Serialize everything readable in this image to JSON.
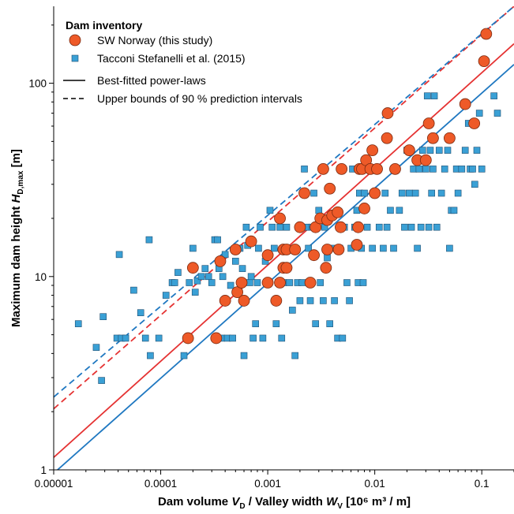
{
  "chart_data": {
    "type": "scatter",
    "xscale": "log",
    "yscale": "log",
    "xlim": [
      1e-05,
      0.2
    ],
    "ylim": [
      1,
      250
    ],
    "xticks": [
      1e-05,
      0.0001,
      0.001,
      0.01,
      0.1
    ],
    "xtick_labels": [
      "0.00001",
      "0.0001",
      "0.001",
      "0.01",
      "0.1"
    ],
    "yticks": [
      1,
      10,
      100
    ],
    "ytick_labels": [
      "1",
      "10",
      "100"
    ],
    "xlabel": {
      "main": "Dam volume",
      "v1": "V",
      "v1_sub": "D",
      "sep": " / Valley width ",
      "v2": "W",
      "v2_sub": "V",
      "units": " [10⁶ m³ / m]"
    },
    "ylabel": {
      "main": "Maximum dam height ",
      "var": "H",
      "sub": "D,max",
      "units": " [m]"
    },
    "grid": false,
    "legend": {
      "placement": "top-left",
      "title": "Dam inventory",
      "items": [
        "SW Norway (this study)",
        "Tacconi Stefanelli et al. (2015)",
        "Best-fitted power-laws",
        "Upper bounds of 90 % prediction intervals"
      ]
    },
    "colors": {
      "norway_fill": "#ee5a28",
      "norway_edge": "#7a2a10",
      "tacconi_fill": "#3aa0d5",
      "tacconi_edge": "#1f4f72",
      "red_line": "#e53232",
      "blue_line": "#1f78c1"
    },
    "series": [
      {
        "name": "SW Norway (this study)",
        "marker": "circle",
        "points": [
          [
            0.00018,
            4.8
          ],
          [
            0.00033,
            4.8
          ],
          [
            0.0002,
            11.1
          ],
          [
            0.00036,
            12
          ],
          [
            0.0004,
            7.5
          ],
          [
            0.00052,
            8.3
          ],
          [
            0.0005,
            13.8
          ],
          [
            0.00057,
            9.3
          ],
          [
            0.0006,
            7.5
          ],
          [
            0.0007,
            15.2
          ],
          [
            0.001,
            9.3
          ],
          [
            0.001,
            12.9
          ],
          [
            0.0012,
            7.5
          ],
          [
            0.0013,
            9.3
          ],
          [
            0.0014,
            11.1
          ],
          [
            0.0014,
            13.8
          ],
          [
            0.0013,
            20
          ],
          [
            0.0015,
            11.1
          ],
          [
            0.0015,
            13.8
          ],
          [
            0.0018,
            13.8
          ],
          [
            0.002,
            18
          ],
          [
            0.0022,
            27
          ],
          [
            0.0025,
            9.3
          ],
          [
            0.0027,
            12.9
          ],
          [
            0.0028,
            18
          ],
          [
            0.0031,
            20
          ],
          [
            0.0033,
            36
          ],
          [
            0.0035,
            11.1
          ],
          [
            0.0036,
            13.8
          ],
          [
            0.0036,
            19.6
          ],
          [
            0.0038,
            28.5
          ],
          [
            0.004,
            20.7
          ],
          [
            0.0045,
            21.5
          ],
          [
            0.0046,
            13.8
          ],
          [
            0.0048,
            18
          ],
          [
            0.0049,
            36
          ],
          [
            0.0068,
            14.6
          ],
          [
            0.007,
            18
          ],
          [
            0.0072,
            36
          ],
          [
            0.0076,
            36
          ],
          [
            0.008,
            22.5
          ],
          [
            0.0083,
            40
          ],
          [
            0.0091,
            36
          ],
          [
            0.0095,
            45
          ],
          [
            0.01,
            27
          ],
          [
            0.0105,
            36
          ],
          [
            0.013,
            52
          ],
          [
            0.0132,
            70
          ],
          [
            0.0155,
            36
          ],
          [
            0.021,
            45
          ],
          [
            0.025,
            40
          ],
          [
            0.03,
            40
          ],
          [
            0.032,
            62
          ],
          [
            0.035,
            52
          ],
          [
            0.05,
            52
          ],
          [
            0.07,
            78
          ],
          [
            0.085,
            62
          ],
          [
            0.105,
            130
          ],
          [
            0.11,
            180
          ]
        ]
      },
      {
        "name": "Tacconi Stefanelli et al. (2015)",
        "marker": "square",
        "points": [
          [
            1.7e-05,
            5.7
          ],
          [
            2.5e-05,
            4.3
          ],
          [
            2.8e-05,
            2.9
          ],
          [
            2.9e-05,
            6.2
          ],
          [
            3.9e-05,
            4.8
          ],
          [
            4.1e-05,
            13
          ],
          [
            4.3e-05,
            4.8
          ],
          [
            4.7e-05,
            4.8
          ],
          [
            5.6e-05,
            8.5
          ],
          [
            6.5e-05,
            6.5
          ],
          [
            7.2e-05,
            4.8
          ],
          [
            7.8e-05,
            15.5
          ],
          [
            8e-05,
            3.9
          ],
          [
            9.6e-05,
            4.8
          ],
          [
            0.000112,
            8
          ],
          [
            0.000128,
            9.3
          ],
          [
            0.000135,
            9.3
          ],
          [
            0.000145,
            10.5
          ],
          [
            0.000165,
            3.9
          ],
          [
            0.000185,
            9.3
          ],
          [
            0.0002,
            14
          ],
          [
            0.00021,
            8.3
          ],
          [
            0.00022,
            9.5
          ],
          [
            0.00024,
            10
          ],
          [
            0.00026,
            11
          ],
          [
            0.00028,
            10
          ],
          [
            0.0003,
            9.3
          ],
          [
            0.00032,
            15.5
          ],
          [
            0.00034,
            15.5
          ],
          [
            0.00035,
            11
          ],
          [
            0.00037,
            4.8
          ],
          [
            0.00038,
            10
          ],
          [
            0.0004,
            13
          ],
          [
            0.00042,
            4.8
          ],
          [
            0.00045,
            9
          ],
          [
            0.00047,
            4.8
          ],
          [
            0.0005,
            12
          ],
          [
            0.00055,
            14
          ],
          [
            0.00058,
            11
          ],
          [
            0.0006,
            3.9
          ],
          [
            0.00063,
            18
          ],
          [
            0.00065,
            14.5
          ],
          [
            0.00068,
            9.3
          ],
          [
            0.0007,
            10
          ],
          [
            0.00073,
            4.8
          ],
          [
            0.00077,
            5.7
          ],
          [
            0.0008,
            9.3
          ],
          [
            0.00082,
            14
          ],
          [
            0.00085,
            18
          ],
          [
            0.0009,
            4.8
          ],
          [
            0.00095,
            12
          ],
          [
            0.001,
            9.3
          ],
          [
            0.00105,
            22
          ],
          [
            0.0011,
            18
          ],
          [
            0.00115,
            14
          ],
          [
            0.0012,
            5.7
          ],
          [
            0.00125,
            9.3
          ],
          [
            0.0013,
            18
          ],
          [
            0.00135,
            4.8
          ],
          [
            0.0014,
            9.3
          ],
          [
            0.0015,
            18
          ],
          [
            0.0016,
            9.3
          ],
          [
            0.0017,
            6.7
          ],
          [
            0.0018,
            3.9
          ],
          [
            0.0019,
            9.3
          ],
          [
            0.002,
            7.5
          ],
          [
            0.0021,
            9.3
          ],
          [
            0.0022,
            36
          ],
          [
            0.0023,
            18
          ],
          [
            0.0024,
            14
          ],
          [
            0.0025,
            7.5
          ],
          [
            0.0026,
            18
          ],
          [
            0.0027,
            27
          ],
          [
            0.0028,
            5.7
          ],
          [
            0.003,
            22
          ],
          [
            0.0031,
            9.3
          ],
          [
            0.0033,
            7.5
          ],
          [
            0.0034,
            18
          ],
          [
            0.0036,
            12.5
          ],
          [
            0.0038,
            5.7
          ],
          [
            0.004,
            14
          ],
          [
            0.0042,
            7.5
          ],
          [
            0.0045,
            4.8
          ],
          [
            0.0047,
            14
          ],
          [
            0.005,
            4.8
          ],
          [
            0.0052,
            18
          ],
          [
            0.0055,
            9.3
          ],
          [
            0.0058,
            7.5
          ],
          [
            0.006,
            14
          ],
          [
            0.0062,
            36
          ],
          [
            0.0065,
            18
          ],
          [
            0.0068,
            22
          ],
          [
            0.007,
            9.3
          ],
          [
            0.0072,
            27
          ],
          [
            0.0075,
            14
          ],
          [
            0.0078,
            9.3
          ],
          [
            0.008,
            27
          ],
          [
            0.0085,
            18
          ],
          [
            0.009,
            36
          ],
          [
            0.0095,
            14
          ],
          [
            0.01,
            36
          ],
          [
            0.011,
            18
          ],
          [
            0.012,
            14
          ],
          [
            0.0125,
            27
          ],
          [
            0.013,
            18
          ],
          [
            0.014,
            22
          ],
          [
            0.015,
            14
          ],
          [
            0.016,
            36
          ],
          [
            0.017,
            22
          ],
          [
            0.018,
            27
          ],
          [
            0.019,
            18
          ],
          [
            0.02,
            45
          ],
          [
            0.021,
            27
          ],
          [
            0.022,
            18
          ],
          [
            0.023,
            36
          ],
          [
            0.024,
            27
          ],
          [
            0.025,
            14
          ],
          [
            0.026,
            36
          ],
          [
            0.027,
            18
          ],
          [
            0.028,
            45
          ],
          [
            0.03,
            36
          ],
          [
            0.031,
            86
          ],
          [
            0.032,
            18
          ],
          [
            0.033,
            45
          ],
          [
            0.034,
            27
          ],
          [
            0.035,
            36
          ],
          [
            0.036,
            86
          ],
          [
            0.038,
            18
          ],
          [
            0.04,
            45
          ],
          [
            0.042,
            27
          ],
          [
            0.045,
            36
          ],
          [
            0.048,
            45
          ],
          [
            0.05,
            14
          ],
          [
            0.052,
            22
          ],
          [
            0.055,
            22
          ],
          [
            0.058,
            36
          ],
          [
            0.06,
            27
          ],
          [
            0.065,
            36
          ],
          [
            0.07,
            45
          ],
          [
            0.075,
            62
          ],
          [
            0.078,
            36
          ],
          [
            0.082,
            36
          ],
          [
            0.086,
            30
          ],
          [
            0.09,
            45
          ],
          [
            0.095,
            70
          ],
          [
            0.1,
            36
          ],
          [
            0.13,
            86
          ],
          [
            0.14,
            70
          ]
        ]
      }
    ],
    "lines": [
      {
        "name": "SW Norway best fit",
        "color": "red",
        "style": "solid",
        "points": [
          [
            1e-05,
            1.16
          ],
          [
            0.2,
            160
          ]
        ]
      },
      {
        "name": "SW Norway 90% upper bound",
        "color": "red",
        "style": "dashed",
        "points": [
          [
            1e-05,
            2.07
          ],
          [
            0.2,
            250
          ]
        ]
      },
      {
        "name": "Tacconi best fit",
        "color": "blue",
        "style": "solid",
        "points": [
          [
            1e-05,
            0.96
          ],
          [
            0.2,
            125
          ]
        ]
      },
      {
        "name": "Tacconi 90% upper bound",
        "color": "blue",
        "style": "dashed",
        "points": [
          [
            1e-05,
            2.38
          ],
          [
            0.2,
            250
          ]
        ]
      }
    ]
  }
}
